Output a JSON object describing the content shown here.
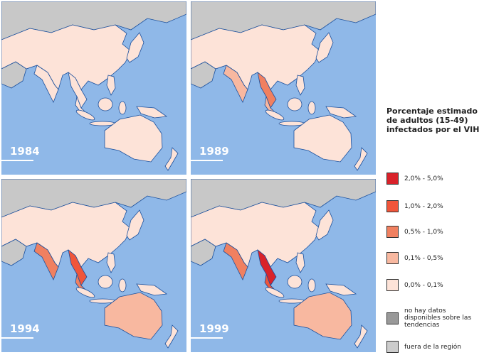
{
  "maps": [
    {
      "year": "1984"
    },
    {
      "year": "1989"
    },
    {
      "year": "1994"
    },
    {
      "year": "1999"
    }
  ],
  "legend": {
    "title": "Porcentaje estimado de adultos (15-49) infectados por el VIH",
    "items": [
      {
        "label": "2,0% - 5,0%",
        "color": "#d9222a"
      },
      {
        "label": "1,0% - 2,0%",
        "color": "#f0553a"
      },
      {
        "label": "0,5% - 1,0%",
        "color": "#f08060"
      },
      {
        "label": "0,1% - 0,5%",
        "color": "#f8b8a0"
      },
      {
        "label": "0,0% - 0,1%",
        "color": "#fde3d8"
      },
      {
        "label": "no hay datos disponibles sobre las tendencias",
        "color": "#999999"
      },
      {
        "label": "fuera de la región",
        "color": "#cccccc"
      }
    ]
  }
}
